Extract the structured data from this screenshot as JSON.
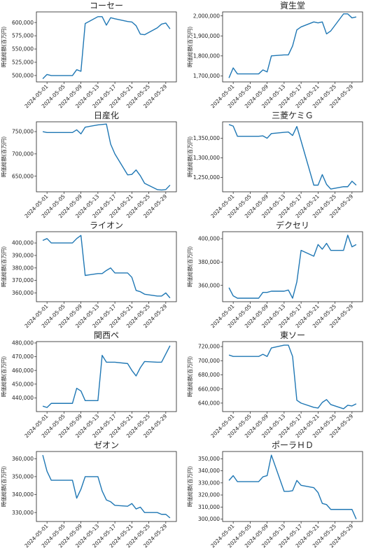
{
  "figure": {
    "ylabel": "時価総額(百万円)"
  },
  "x_ticks": [
    "2024-05-01",
    "2024-05-05",
    "2024-05-09",
    "2024-05-13",
    "2024-05-17",
    "2024-05-21",
    "2024-05-25",
    "2024-05-29"
  ],
  "chart_data": [
    {
      "type": "line",
      "title": "コーセー",
      "ylabel": "時価総額(百万円)",
      "x": [
        "2024-04-30",
        "2024-05-01",
        "2024-05-02",
        "2024-05-07",
        "2024-05-08",
        "2024-05-09",
        "2024-05-10",
        "2024-05-13",
        "2024-05-14",
        "2024-05-15",
        "2024-05-16",
        "2024-05-17",
        "2024-05-20",
        "2024-05-21",
        "2024-05-22",
        "2024-05-23",
        "2024-05-24",
        "2024-05-27",
        "2024-05-28",
        "2024-05-29",
        "2024-05-30"
      ],
      "y": [
        494000,
        502000,
        500000,
        500000,
        511000,
        508000,
        598000,
        611000,
        611000,
        595000,
        609000,
        607000,
        602000,
        601000,
        594000,
        578000,
        577000,
        590000,
        597000,
        599000,
        588000
      ],
      "ylim": [
        488000,
        620000
      ],
      "yticks": [
        500000,
        525000,
        550000,
        575000,
        600000
      ],
      "yticklabels": [
        "500,000",
        "525,000",
        "550,000",
        "575,000",
        "600,000"
      ]
    },
    {
      "type": "line",
      "title": "資生堂",
      "ylabel": "時価総額(百万円)",
      "x": [
        "2024-04-30",
        "2024-05-01",
        "2024-05-02",
        "2024-05-07",
        "2024-05-08",
        "2024-05-09",
        "2024-05-10",
        "2024-05-13",
        "2024-05-14",
        "2024-05-15",
        "2024-05-16",
        "2024-05-17",
        "2024-05-20",
        "2024-05-21",
        "2024-05-22",
        "2024-05-23",
        "2024-05-24",
        "2024-05-27",
        "2024-05-28",
        "2024-05-29",
        "2024-05-30"
      ],
      "y": [
        1690000,
        1740000,
        1710000,
        1710000,
        1730000,
        1720000,
        1800000,
        1805000,
        1805000,
        1850000,
        1930000,
        1945000,
        1970000,
        1965000,
        1970000,
        1910000,
        1925000,
        2010000,
        2010000,
        1990000,
        1995000
      ],
      "ylim": [
        1670000,
        2020000
      ],
      "yticks": [
        1700000,
        1800000,
        1900000,
        2000000
      ],
      "yticklabels": [
        "1,700,000",
        "1,800,000",
        "1,900,000",
        "2,000,000"
      ]
    },
    {
      "type": "line",
      "title": "日産化",
      "ylabel": "時価総額(百万円)",
      "x": [
        "2024-04-30",
        "2024-05-01",
        "2024-05-02",
        "2024-05-07",
        "2024-05-08",
        "2024-05-09",
        "2024-05-10",
        "2024-05-13",
        "2024-05-14",
        "2024-05-15",
        "2024-05-16",
        "2024-05-17",
        "2024-05-20",
        "2024-05-21",
        "2024-05-22",
        "2024-05-23",
        "2024-05-24",
        "2024-05-27",
        "2024-05-28",
        "2024-05-29",
        "2024-05-30"
      ],
      "y": [
        750000,
        748000,
        748000,
        748000,
        754000,
        745000,
        760000,
        765000,
        766000,
        767000,
        722000,
        700000,
        653000,
        654000,
        664000,
        651000,
        634000,
        620000,
        619000,
        620000,
        630000
      ],
      "ylim": [
        615000,
        772000
      ],
      "yticks": [
        650000,
        700000,
        750000
      ],
      "yticklabels": [
        "650,000",
        "700,000",
        "750,000"
      ]
    },
    {
      "type": "line",
      "title": "三菱ケミＧ",
      "ylabel": "時価総額(百万円)",
      "x": [
        "2024-04-30",
        "2024-05-01",
        "2024-05-02",
        "2024-05-07",
        "2024-05-08",
        "2024-05-09",
        "2024-05-10",
        "2024-05-13",
        "2024-05-14",
        "2024-05-15",
        "2024-05-16",
        "2024-05-17",
        "2024-05-20",
        "2024-05-21",
        "2024-05-22",
        "2024-05-23",
        "2024-05-24",
        "2024-05-27",
        "2024-05-28",
        "2024-05-29",
        "2024-05-30"
      ],
      "y": [
        1385000,
        1381000,
        1355000,
        1355000,
        1356000,
        1350000,
        1362000,
        1365000,
        1366000,
        1357000,
        1380000,
        1343000,
        1230000,
        1230000,
        1257000,
        1232000,
        1220000,
        1226000,
        1226000,
        1240000,
        1230000
      ],
      "ylim": [
        1213000,
        1392000
      ],
      "yticks": [
        1250000,
        1300000,
        1350000
      ],
      "yticklabels": [
        "1,250,000",
        "1,300,000",
        "1,350,000"
      ]
    },
    {
      "type": "line",
      "title": "ライオン",
      "ylabel": "時価総額(百万円)",
      "x": [
        "2024-04-30",
        "2024-05-01",
        "2024-05-02",
        "2024-05-07",
        "2024-05-08",
        "2024-05-09",
        "2024-05-10",
        "2024-05-13",
        "2024-05-14",
        "2024-05-15",
        "2024-05-16",
        "2024-05-17",
        "2024-05-20",
        "2024-05-21",
        "2024-05-22",
        "2024-05-23",
        "2024-05-24",
        "2024-05-27",
        "2024-05-28",
        "2024-05-29",
        "2024-05-30"
      ],
      "y": [
        402000,
        403500,
        400000,
        400000,
        403500,
        406000,
        374000,
        375500,
        375500,
        378000,
        380000,
        376000,
        376000,
        372500,
        362000,
        361000,
        359000,
        357500,
        357500,
        360000,
        356000
      ],
      "ylim": [
        353000,
        409000
      ],
      "yticks": [
        360000,
        370000,
        380000,
        390000,
        400000
      ],
      "yticklabels": [
        "360,000",
        "370,000",
        "380,000",
        "390,000",
        "400,000"
      ]
    },
    {
      "type": "line",
      "title": "デクセリ",
      "ylabel": "時価総額(百万円)",
      "x": [
        "2024-04-30",
        "2024-05-01",
        "2024-05-02",
        "2024-05-07",
        "2024-05-08",
        "2024-05-09",
        "2024-05-10",
        "2024-05-13",
        "2024-05-14",
        "2024-05-15",
        "2024-05-16",
        "2024-05-17",
        "2024-05-20",
        "2024-05-21",
        "2024-05-22",
        "2024-05-23",
        "2024-05-24",
        "2024-05-27",
        "2024-05-28",
        "2024-05-29",
        "2024-05-30"
      ],
      "y": [
        358000,
        351000,
        349000,
        349000,
        354000,
        354000,
        355000,
        355000,
        356000,
        349000,
        363000,
        390000,
        385000,
        395000,
        391000,
        396000,
        390000,
        390000,
        403000,
        393000,
        395000
      ],
      "ylim": [
        346000,
        406000
      ],
      "yticks": [
        360000,
        380000,
        400000
      ],
      "yticklabels": [
        "360,000",
        "380,000",
        "400,000"
      ]
    },
    {
      "type": "line",
      "title": "関西ペ",
      "ylabel": "時価総額(百万円)",
      "x": [
        "2024-04-30",
        "2024-05-01",
        "2024-05-02",
        "2024-05-07",
        "2024-05-08",
        "2024-05-09",
        "2024-05-10",
        "2024-05-13",
        "2024-05-14",
        "2024-05-15",
        "2024-05-16",
        "2024-05-17",
        "2024-05-20",
        "2024-05-21",
        "2024-05-22",
        "2024-05-23",
        "2024-05-24",
        "2024-05-27",
        "2024-05-28",
        "2024-05-29",
        "2024-05-30"
      ],
      "y": [
        434000,
        433000,
        436000,
        436000,
        447000,
        445000,
        438000,
        438000,
        471000,
        466000,
        466000,
        466000,
        465000,
        460000,
        456000,
        462000,
        466500,
        466000,
        466000,
        472000,
        478000
      ],
      "ylim": [
        430000,
        481000
      ],
      "yticks": [
        440000,
        450000,
        460000,
        470000,
        480000
      ],
      "yticklabels": [
        "440,000",
        "450,000",
        "460,000",
        "470,000",
        "480,000"
      ]
    },
    {
      "type": "line",
      "title": "東ソー",
      "ylabel": "時価総額(百万円)",
      "x": [
        "2024-04-30",
        "2024-05-01",
        "2024-05-02",
        "2024-05-07",
        "2024-05-08",
        "2024-05-09",
        "2024-05-10",
        "2024-05-13",
        "2024-05-14",
        "2024-05-15",
        "2024-05-16",
        "2024-05-17",
        "2024-05-20",
        "2024-05-21",
        "2024-05-22",
        "2024-05-23",
        "2024-05-24",
        "2024-05-27",
        "2024-05-28",
        "2024-05-29",
        "2024-05-30"
      ],
      "y": [
        708000,
        706000,
        706000,
        706000,
        709000,
        706000,
        718000,
        722000,
        722000,
        706000,
        644000,
        640000,
        634000,
        633000,
        641000,
        645000,
        638000,
        632000,
        637000,
        636000,
        639000
      ],
      "ylim": [
        628000,
        727000
      ],
      "yticks": [
        640000,
        660000,
        680000,
        700000,
        720000
      ],
      "yticklabels": [
        "640,000",
        "660,000",
        "680,000",
        "700,000",
        "720,000"
      ]
    },
    {
      "type": "line",
      "title": "ゼオン",
      "ylabel": "時価総額(百万円)",
      "x": [
        "2024-04-30",
        "2024-05-01",
        "2024-05-02",
        "2024-05-07",
        "2024-05-08",
        "2024-05-09",
        "2024-05-10",
        "2024-05-13",
        "2024-05-14",
        "2024-05-15",
        "2024-05-16",
        "2024-05-17",
        "2024-05-20",
        "2024-05-21",
        "2024-05-22",
        "2024-05-23",
        "2024-05-24",
        "2024-05-27",
        "2024-05-28",
        "2024-05-29",
        "2024-05-30"
      ],
      "y": [
        362000,
        353000,
        348000,
        348000,
        338000,
        343000,
        350000,
        350000,
        342000,
        337000,
        336000,
        334000,
        333500,
        335000,
        332000,
        333000,
        330000,
        330000,
        329000,
        329000,
        327000
      ],
      "ylim": [
        325000,
        364000
      ],
      "yticks": [
        330000,
        340000,
        350000,
        360000
      ],
      "yticklabels": [
        "330,000",
        "340,000",
        "350,000",
        "360,000"
      ]
    },
    {
      "type": "line",
      "title": "ポーラＨＤ",
      "ylabel": "時価総額(百万円)",
      "x": [
        "2024-04-30",
        "2024-05-01",
        "2024-05-02",
        "2024-05-07",
        "2024-05-08",
        "2024-05-09",
        "2024-05-10",
        "2024-05-13",
        "2024-05-14",
        "2024-05-15",
        "2024-05-16",
        "2024-05-17",
        "2024-05-20",
        "2024-05-21",
        "2024-05-22",
        "2024-05-23",
        "2024-05-24",
        "2024-05-27",
        "2024-05-28",
        "2024-05-29",
        "2024-05-30"
      ],
      "y": [
        332000,
        336000,
        331000,
        331000,
        335000,
        336000,
        353000,
        323000,
        323000,
        323500,
        332000,
        328000,
        326000,
        322000,
        313000,
        312000,
        308000,
        308000,
        308000,
        308000,
        300000
      ],
      "ylim": [
        298000,
        356000
      ],
      "yticks": [
        300000,
        310000,
        320000,
        330000,
        340000,
        350000
      ],
      "yticklabels": [
        "300,000",
        "310,000",
        "320,000",
        "330,000",
        "340,000",
        "350,000"
      ]
    }
  ]
}
